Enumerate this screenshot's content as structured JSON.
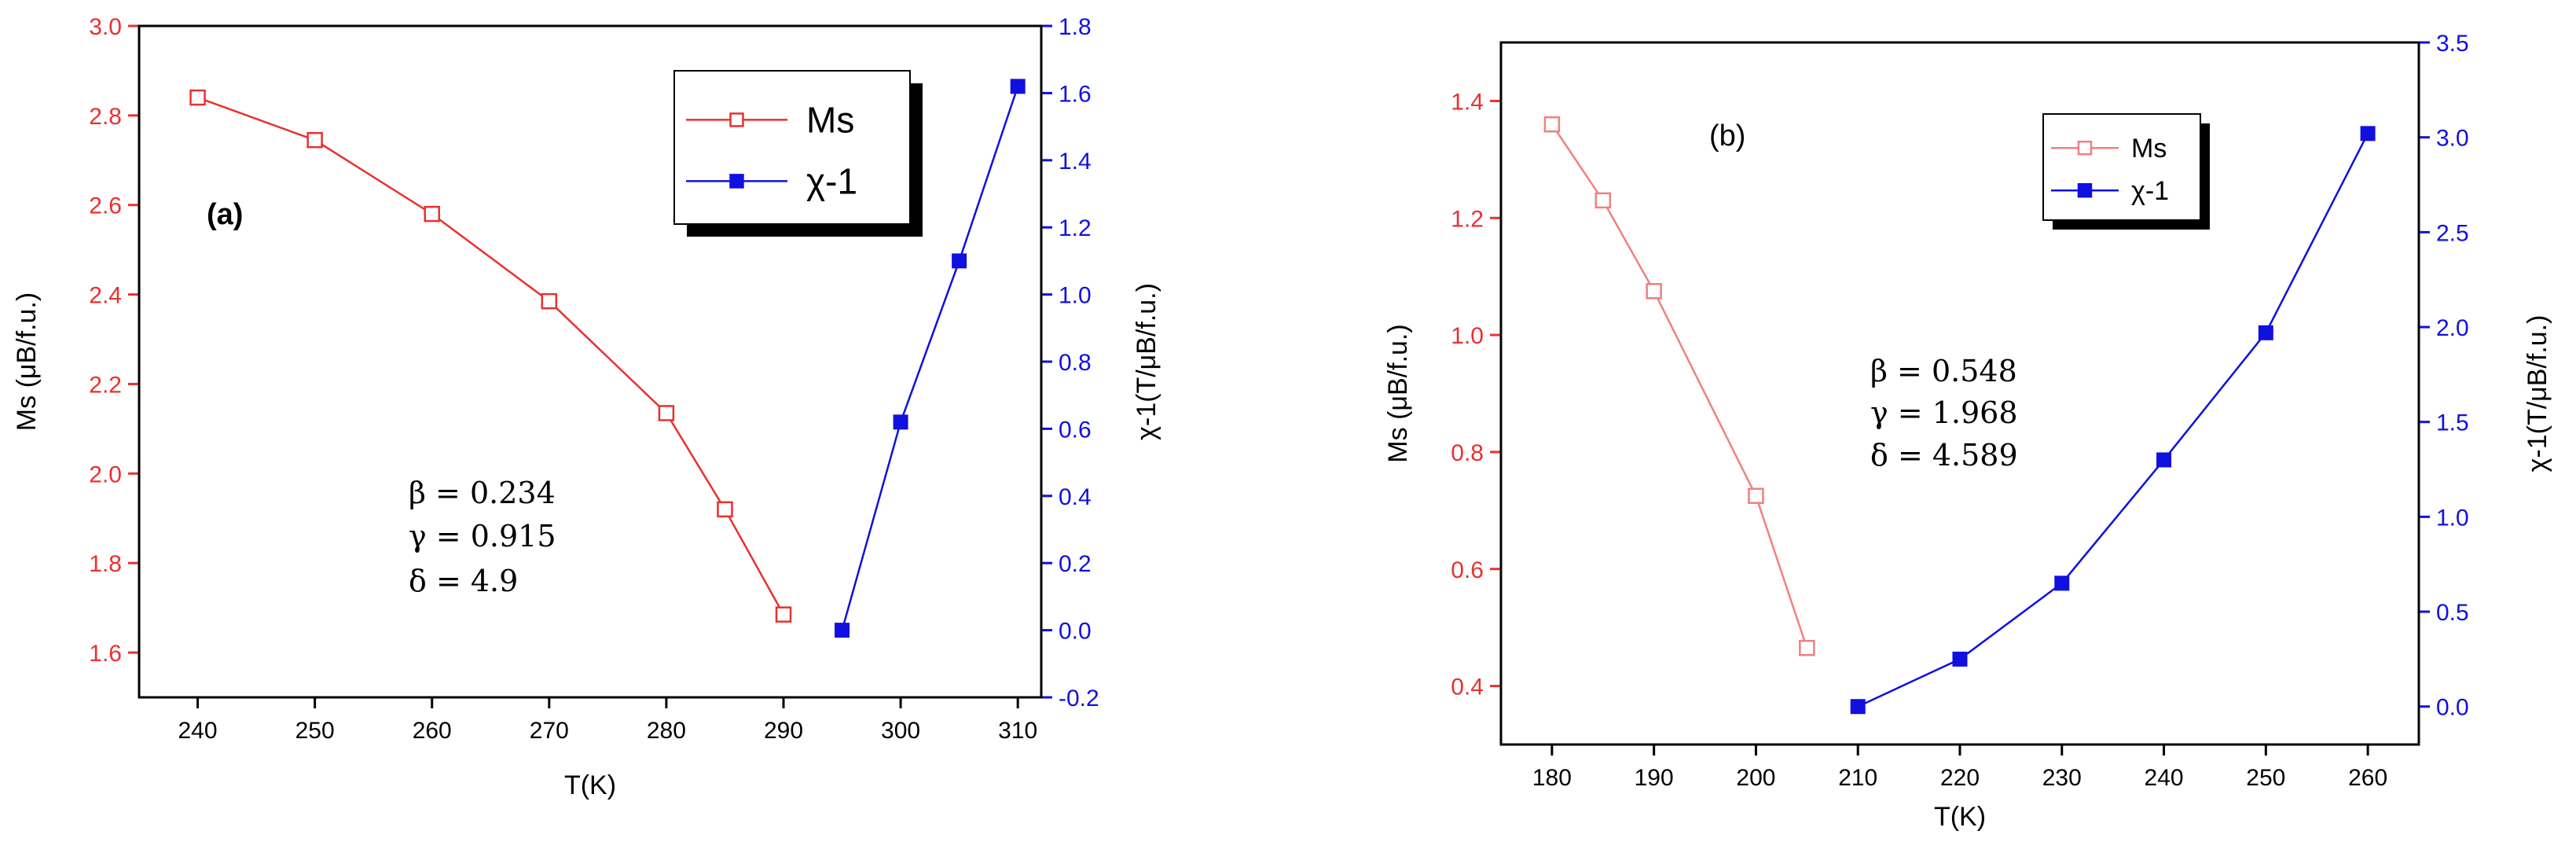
{
  "chart_data": [
    {
      "type": "line",
      "panel_label": "(a)",
      "xlabel": "T(K)",
      "ylabel": "Ms (μB/f.u.)",
      "y2label": "χ-1(T/μB/f.u.)",
      "xlim": [
        235,
        312
      ],
      "ylim": [
        1.5,
        3.0
      ],
      "y2lim": [
        -0.2,
        1.8
      ],
      "x_ticks": [
        "240",
        "250",
        "260",
        "270",
        "280",
        "290",
        "300",
        "310"
      ],
      "y_ticks": [
        "1.6",
        "1.8",
        "2.0",
        "2.2",
        "2.4",
        "2.6",
        "2.8",
        "3.0"
      ],
      "y2_ticks": [
        "-0.2",
        "0.0",
        "0.2",
        "0.4",
        "0.6",
        "0.8",
        "1.0",
        "1.2",
        "1.4",
        "1.6",
        "1.8"
      ],
      "series": [
        {
          "name": "Ms",
          "axis": "left",
          "color": "#e8312f",
          "marker": "open-square",
          "x": [
            240,
            250,
            260,
            270,
            280,
            285,
            290
          ],
          "y": [
            2.84,
            2.745,
            2.58,
            2.385,
            2.135,
            1.92,
            1.685
          ]
        },
        {
          "name": "χ-1",
          "axis": "right",
          "color": "#1010e0",
          "marker": "filled-square",
          "x": [
            295,
            300,
            305,
            310
          ],
          "y": [
            0.0,
            0.62,
            1.1,
            1.62
          ]
        }
      ],
      "legend": {
        "position": "top-right",
        "entries": [
          "Ms",
          "χ-1"
        ]
      },
      "params": [
        "β = 0.234",
        "γ = 0.915",
        "δ = 4.9"
      ]
    },
    {
      "type": "line",
      "panel_label": "(b)",
      "xlabel": "T(K)",
      "ylabel": "Ms (μB/f.u.)",
      "y2label": "χ-1(T/μB/f.u.)",
      "xlim": [
        175,
        265
      ],
      "ylim": [
        0.3,
        1.5
      ],
      "y2lim": [
        -0.2,
        3.5
      ],
      "x_ticks": [
        "180",
        "190",
        "200",
        "210",
        "220",
        "230",
        "240",
        "250",
        "260"
      ],
      "y_ticks": [
        "0.4",
        "0.6",
        "0.8",
        "1.0",
        "1.2",
        "1.4"
      ],
      "y2_ticks": [
        "0.0",
        "0.5",
        "1.0",
        "1.5",
        "2.0",
        "2.5",
        "3.0",
        "3.5"
      ],
      "series": [
        {
          "name": "Ms",
          "axis": "left",
          "color": "#f08080",
          "marker": "open-square",
          "x": [
            180,
            185,
            190,
            200,
            205
          ],
          "y": [
            1.36,
            1.23,
            1.075,
            0.725,
            0.465
          ]
        },
        {
          "name": "χ-1",
          "axis": "right",
          "color": "#1010e0",
          "marker": "filled-square",
          "x": [
            210,
            220,
            230,
            240,
            250,
            260
          ],
          "y": [
            0.0,
            0.25,
            0.65,
            1.3,
            1.97,
            3.02
          ]
        }
      ],
      "legend": {
        "position": "top-center",
        "entries": [
          "Ms",
          "χ-1"
        ]
      },
      "params": [
        "β = 0.548",
        "γ = 1.968",
        "δ = 4.589"
      ]
    }
  ]
}
